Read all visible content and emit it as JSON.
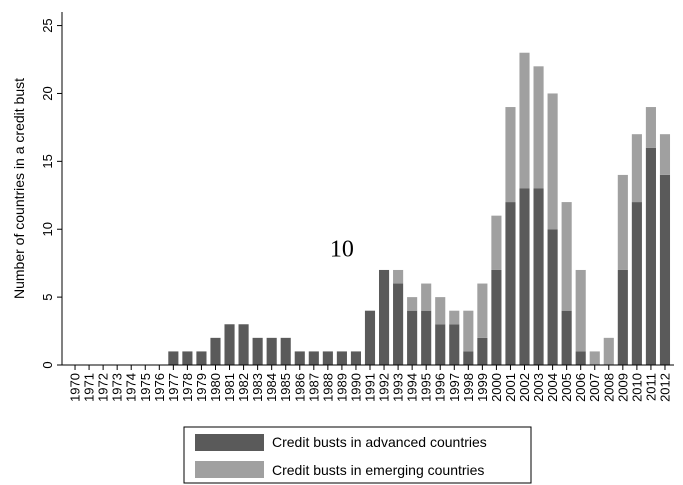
{
  "chart_data": {
    "type": "bar",
    "stacked": true,
    "ylabel": "Number of countries in a credit bust",
    "ylim": [
      0,
      26
    ],
    "yticks": [
      0,
      5,
      10,
      15,
      20,
      25
    ],
    "grid": false,
    "legend_position": "bottom",
    "annotation": {
      "text": "10",
      "x": "1989",
      "y": 8
    },
    "categories": [
      "1970",
      "1971",
      "1972",
      "1973",
      "1974",
      "1975",
      "1976",
      "1977",
      "1978",
      "1979",
      "1980",
      "1981",
      "1982",
      "1983",
      "1984",
      "1985",
      "1986",
      "1987",
      "1988",
      "1989",
      "1990",
      "1991",
      "1992",
      "1993",
      "1994",
      "1995",
      "1996",
      "1997",
      "1998",
      "1999",
      "2000",
      "2001",
      "2002",
      "2003",
      "2004",
      "2005",
      "2006",
      "2007",
      "2008",
      "2009",
      "2010",
      "2011",
      "2012"
    ],
    "series": [
      {
        "name": "Credit busts in advanced countries",
        "color": "#5a5a5a",
        "values": [
          0,
          0,
          0,
          0,
          0,
          0,
          0,
          1,
          1,
          1,
          2,
          3,
          3,
          2,
          2,
          2,
          1,
          1,
          1,
          1,
          1,
          4,
          7,
          6,
          4,
          4,
          3,
          3,
          1,
          2,
          7,
          12,
          13,
          13,
          10,
          4,
          1,
          0,
          0,
          7,
          12,
          16,
          14
        ]
      },
      {
        "name": "Credit busts in emerging countries",
        "color": "#a0a0a0",
        "values": [
          0,
          0,
          0,
          0,
          0,
          0,
          0,
          0,
          0,
          0,
          0,
          0,
          0,
          0,
          0,
          0,
          0,
          0,
          0,
          0,
          0,
          0,
          0,
          1,
          1,
          2,
          2,
          1,
          3,
          4,
          4,
          7,
          10,
          9,
          10,
          8,
          6,
          1,
          2,
          7,
          5,
          3,
          3
        ]
      }
    ]
  }
}
